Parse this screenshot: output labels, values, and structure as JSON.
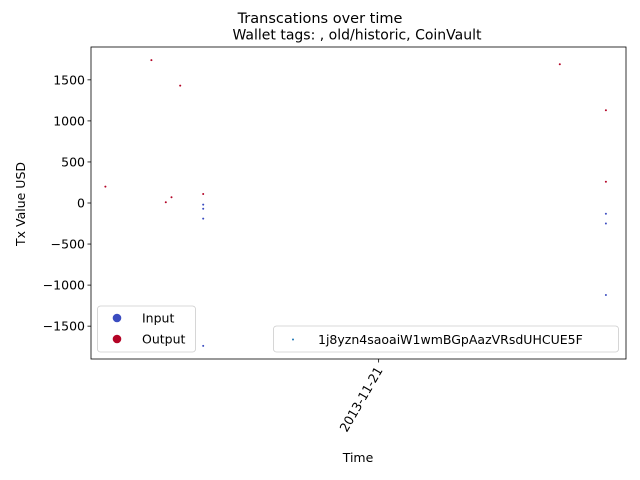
{
  "chart_data": {
    "type": "scatter",
    "title": "Transcations over time",
    "subtitle": "Wallet tags: , old/historic, CoinVault",
    "xlabel": "Time",
    "ylabel": "Tx Value USD",
    "x_tick_labels": [
      {
        "label": "2013-11-21",
        "x": 0
      }
    ],
    "y_ticks": [
      -1500,
      -1000,
      -500,
      0,
      500,
      1000,
      1500
    ],
    "y_tick_labels": [
      "−1500",
      "−1000",
      "−500",
      "0",
      "500",
      "1000",
      "1500"
    ],
    "xlim": [
      -1.0,
      0.86
    ],
    "ylim": [
      -1900,
      1900
    ],
    "grid": false,
    "colors": {
      "input": "#3b4cc0",
      "output": "#b40426",
      "address": "#1f77b4"
    },
    "series": [
      {
        "name": "Input",
        "color_key": "input",
        "points": [
          {
            "x": -0.61,
            "y": -20
          },
          {
            "x": -0.61,
            "y": -70
          },
          {
            "x": -0.61,
            "y": -190
          },
          {
            "x": -0.61,
            "y": -1740
          },
          {
            "x": 0.79,
            "y": -130
          },
          {
            "x": 0.79,
            "y": -250
          },
          {
            "x": 0.79,
            "y": -1120
          }
        ]
      },
      {
        "name": "Output",
        "color_key": "output",
        "points": [
          {
            "x": -0.95,
            "y": 200
          },
          {
            "x": -0.79,
            "y": 1740
          },
          {
            "x": -0.74,
            "y": 10
          },
          {
            "x": -0.72,
            "y": 70
          },
          {
            "x": -0.69,
            "y": 1430
          },
          {
            "x": -0.61,
            "y": 110
          },
          {
            "x": 0.63,
            "y": 1690
          },
          {
            "x": 0.79,
            "y": 1130
          },
          {
            "x": 0.79,
            "y": 260
          }
        ]
      }
    ],
    "legend_categories": {
      "position": "lower left",
      "entries": [
        "Input",
        "Output"
      ]
    },
    "legend_address": {
      "position": "lower right",
      "entries": [
        "1j8yzn4saoaiW1wmBGpAazVRsdUHCUE5F"
      ]
    }
  }
}
